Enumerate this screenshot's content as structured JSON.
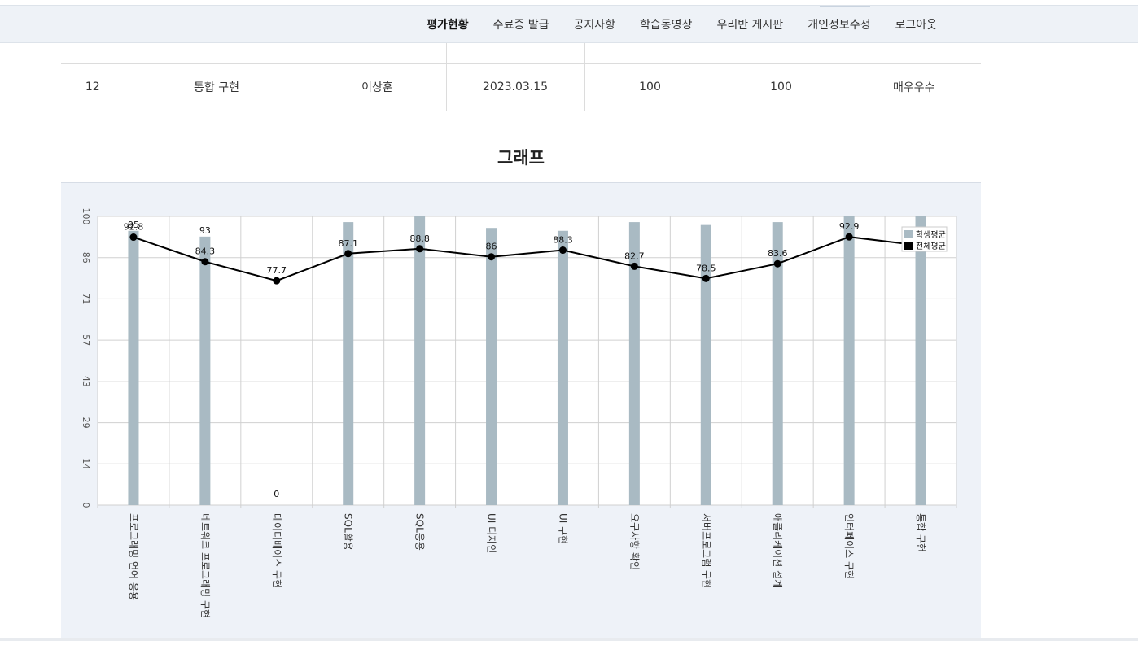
{
  "nav": {
    "items": [
      "평가현황",
      "수료증 발급",
      "공지사항",
      "학습동영상",
      "우리반 게시판",
      "개인정보수정",
      "로그아웃"
    ],
    "active": "평가현황"
  },
  "table": {
    "rows": [
      [
        "12",
        "통합 구현",
        "이상훈",
        "2023.03.15",
        "100",
        "100",
        "매우우수"
      ]
    ]
  },
  "graph": {
    "title": "그래프"
  },
  "chart_data": {
    "type": "bar",
    "categories": [
      "프로그래밍 언어 응용",
      "네트워크 프로그래밍 구현",
      "데이터베이스 구현",
      "SQL활용",
      "SQL응용",
      "UI 디자인",
      "UI 구현",
      "요구사항 확인",
      "서버프로그램 구현",
      "애플리케이션 설계",
      "인터페이스 구현",
      "통합 구현"
    ],
    "series": [
      {
        "name": "학생평균",
        "type": "bar",
        "color": "#a9bac3",
        "values": [
          95,
          93,
          0,
          98,
          100,
          96,
          95,
          98,
          97,
          98,
          100,
          100
        ]
      },
      {
        "name": "전체평균",
        "type": "line",
        "color": "#000000",
        "values": [
          92.8,
          84.3,
          77.7,
          87.1,
          88.8,
          86,
          88.3,
          82.7,
          78.5,
          83.6,
          92.9,
          89.9
        ]
      }
    ],
    "bar_labels": [
      "95",
      "93",
      "0",
      "",
      "",
      "",
      "",
      "",
      "",
      "",
      "",
      ""
    ],
    "line_labels": [
      "92.8",
      "84.3",
      "77.7",
      "87.1",
      "88.8",
      "86",
      "88.3",
      "82.7",
      "78.5",
      "83.6",
      "92.9",
      "89.9"
    ],
    "y_ticks": [
      "0",
      "14",
      "29",
      "43",
      "57",
      "71",
      "86",
      "100"
    ],
    "ylim": [
      0,
      100
    ],
    "grid": true,
    "legend": "top-right"
  }
}
